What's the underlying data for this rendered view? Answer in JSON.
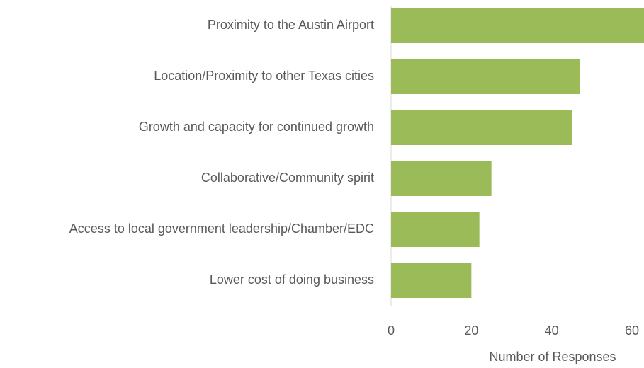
{
  "chart_data": {
    "type": "barh",
    "categories": [
      "Proximity to the Austin Airport",
      "Location/Proximity to other Texas cities",
      "Growth and capacity for continued growth",
      "Collaborative/Community spirit",
      "Access to local government leadership/Chamber/EDC",
      "Lower cost of doing business"
    ],
    "values": [
      63,
      47,
      45,
      25,
      22,
      20
    ],
    "color": "#9bbb59",
    "xlabel": "Number of Responses",
    "xlim": [
      0,
      63
    ],
    "xticks": [
      0,
      20,
      40,
      60
    ],
    "grid": false
  }
}
